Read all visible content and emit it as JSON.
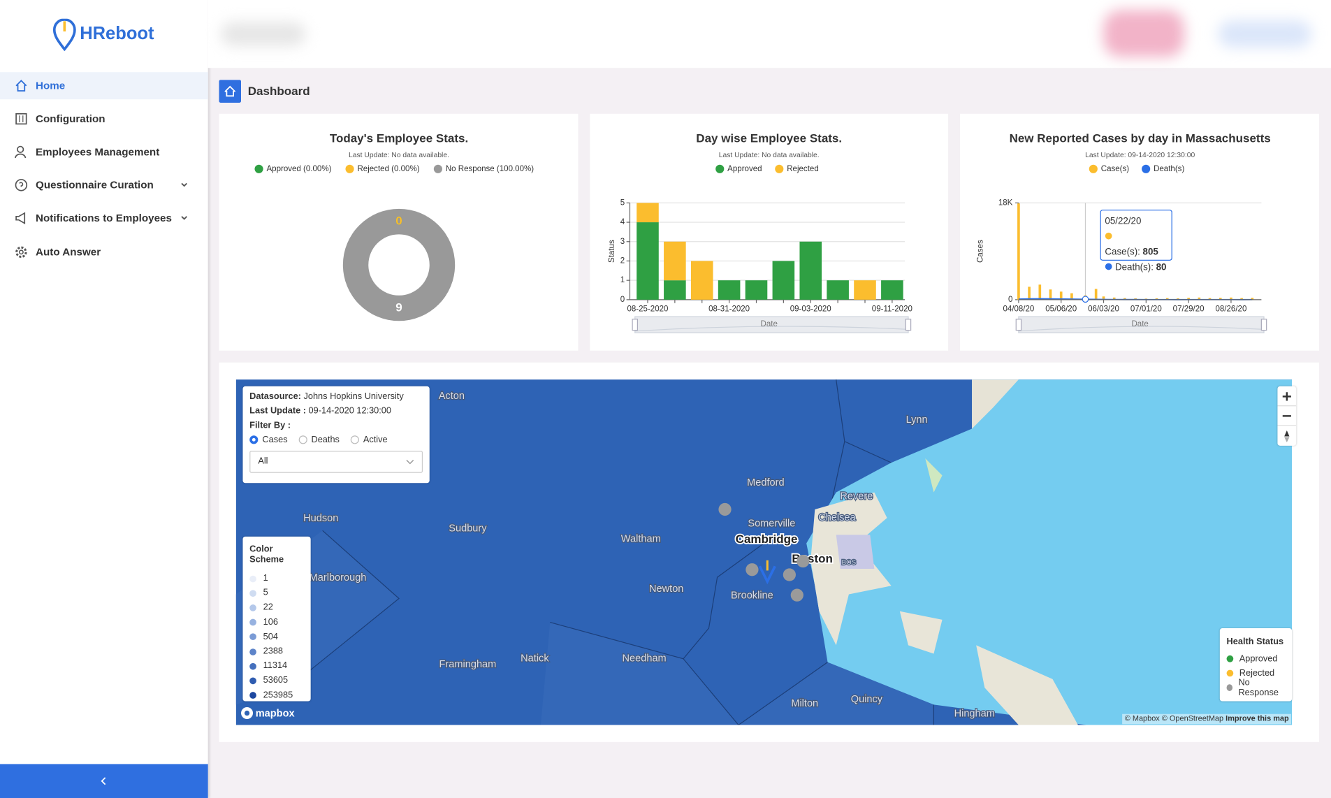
{
  "sidebar": {
    "brand": "HReboot",
    "menu": [
      "Home",
      "Configuration",
      "Employees Management",
      "Questionnaire Curation",
      "Notifications to Employees",
      "Auto Answer"
    ]
  },
  "breadcrumb": "Dashboard",
  "chart_data": [
    {
      "type": "pie",
      "donut": true,
      "title": "Today's Employee Stats.",
      "subtitle": "Last Update: No data available.",
      "categories": [
        "Approved (0.00%)",
        "Rejected (0.00%)",
        "No Response (100.00%)"
      ],
      "values": [
        0,
        0,
        9
      ],
      "colors": [
        "#2fa043",
        "#fbbd2e",
        "#999999"
      ]
    },
    {
      "type": "bar",
      "stacked": true,
      "title": "Day wise Employee Stats.",
      "subtitle": "Last Update: No data available.",
      "xlabel": "Date",
      "ylabel": "Status",
      "categories": [
        "08-25-2020",
        null,
        null,
        "08-31-2020",
        null,
        null,
        "09-03-2020",
        null,
        null,
        "09-11-2020"
      ],
      "series": [
        {
          "name": "Approved",
          "color": "#2fa043",
          "values": [
            4,
            1,
            0,
            1,
            1,
            2,
            3,
            1,
            0,
            1
          ]
        },
        {
          "name": "Rejected",
          "color": "#fbbd2e",
          "values": [
            1,
            2,
            2,
            0,
            0,
            0,
            0,
            0,
            1,
            0
          ]
        }
      ],
      "ylim": [
        0,
        5
      ],
      "yticks": [
        0,
        1,
        2,
        3,
        4,
        5
      ],
      "grid": true
    },
    {
      "type": "bar",
      "title": "New Reported Cases by day in Massachusetts",
      "subtitle": "Last Update: 09-14-2020 12:30:00",
      "xlabel": "Date",
      "ylabel": "Cases",
      "x": [
        "04/08/20",
        "04/15/20",
        "04/22/20",
        "04/29/20",
        "05/06/20",
        "05/13/20",
        "05/22/20",
        "05/29/20",
        "06/03/20",
        "06/10/20",
        "06/17/20",
        "06/24/20",
        "07/01/20",
        "07/08/20",
        "07/15/20",
        "07/22/20",
        "07/29/20",
        "08/05/20",
        "08/12/20",
        "08/19/20",
        "08/26/20",
        "09/02/20",
        "09/09/20"
      ],
      "series": [
        {
          "name": "Case(s)",
          "color": "#fbbd2e",
          "mark": "bar",
          "values": [
            17900,
            2400,
            2800,
            1900,
            1500,
            1200,
            805,
            2000,
            600,
            400,
            300,
            250,
            200,
            250,
            300,
            250,
            350,
            400,
            300,
            350,
            400,
            300,
            350
          ]
        },
        {
          "name": "Death(s)",
          "color": "#2b6fe6",
          "mark": "line",
          "values": [
            100,
            150,
            180,
            150,
            130,
            100,
            80,
            60,
            40,
            30,
            20,
            20,
            15,
            15,
            15,
            10,
            15,
            15,
            15,
            15,
            15,
            10,
            12
          ]
        }
      ],
      "xlim": [
        "04/08/20",
        "09/15/20"
      ],
      "xticks": [
        "04/08/20",
        "05/06/20",
        "06/03/20",
        "07/01/20",
        "07/29/20",
        "08/26/20"
      ],
      "ylim": [
        0,
        18000
      ],
      "yticks": [
        0,
        {
          "value": 18000,
          "label": "18K"
        }
      ],
      "tooltip": 6
    }
  ],
  "map": {
    "info": {
      "datasource_label": "Datasource:",
      "datasource": "Johns Hopkins University",
      "last_update_label": "Last Update :",
      "last_update": "09-14-2020 12:30:00",
      "filter_label": "Filter By :",
      "filters": [
        "Cases",
        "Deaths",
        "Active"
      ],
      "selected": "All"
    },
    "color_scheme": {
      "title": "Color Scheme",
      "stops": [
        1,
        5,
        22,
        106,
        504,
        2388,
        11314,
        53605,
        253985
      ]
    },
    "health_status": {
      "title": "Health Status",
      "items": [
        "Approved",
        "Rejected",
        "No Response"
      ]
    },
    "places": [
      "Acton",
      "Lynn",
      "Medford",
      "Revere",
      "Hudson",
      "Sudbury",
      "Waltham",
      "Somerville",
      "Chelsea",
      "Cambridge",
      "Boston",
      "Marlborough",
      "Newton",
      "Brookline",
      "Framingham",
      "Natick",
      "Needham",
      "Milton",
      "Quincy",
      "Hingham",
      "BOS"
    ],
    "logo": "mapbox",
    "attribution": "© Mapbox © OpenStreetMap",
    "improve": "Improve this map"
  }
}
